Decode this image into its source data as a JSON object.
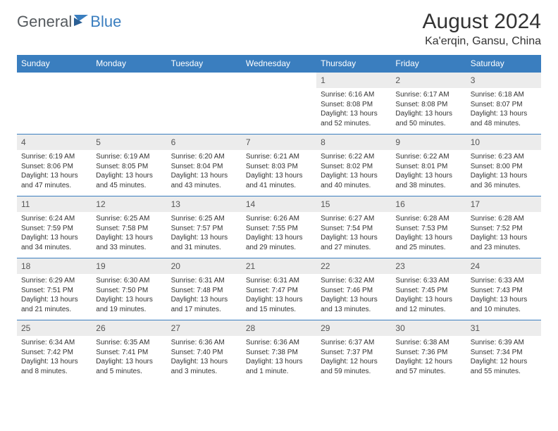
{
  "brand": {
    "part1": "General",
    "part2": "Blue"
  },
  "title": "August 2024",
  "location": "Ka'erqin, Gansu, China",
  "colors": {
    "accent": "#3a7ebf",
    "headerRow": "#ececec",
    "text": "#333333"
  },
  "weekdays": [
    "Sunday",
    "Monday",
    "Tuesday",
    "Wednesday",
    "Thursday",
    "Friday",
    "Saturday"
  ],
  "startBlanks": 4,
  "days": [
    {
      "n": "1",
      "sr": "6:16 AM",
      "ss": "8:08 PM",
      "dl": "13 hours and 52 minutes."
    },
    {
      "n": "2",
      "sr": "6:17 AM",
      "ss": "8:08 PM",
      "dl": "13 hours and 50 minutes."
    },
    {
      "n": "3",
      "sr": "6:18 AM",
      "ss": "8:07 PM",
      "dl": "13 hours and 48 minutes."
    },
    {
      "n": "4",
      "sr": "6:19 AM",
      "ss": "8:06 PM",
      "dl": "13 hours and 47 minutes."
    },
    {
      "n": "5",
      "sr": "6:19 AM",
      "ss": "8:05 PM",
      "dl": "13 hours and 45 minutes."
    },
    {
      "n": "6",
      "sr": "6:20 AM",
      "ss": "8:04 PM",
      "dl": "13 hours and 43 minutes."
    },
    {
      "n": "7",
      "sr": "6:21 AM",
      "ss": "8:03 PM",
      "dl": "13 hours and 41 minutes."
    },
    {
      "n": "8",
      "sr": "6:22 AM",
      "ss": "8:02 PM",
      "dl": "13 hours and 40 minutes."
    },
    {
      "n": "9",
      "sr": "6:22 AM",
      "ss": "8:01 PM",
      "dl": "13 hours and 38 minutes."
    },
    {
      "n": "10",
      "sr": "6:23 AM",
      "ss": "8:00 PM",
      "dl": "13 hours and 36 minutes."
    },
    {
      "n": "11",
      "sr": "6:24 AM",
      "ss": "7:59 PM",
      "dl": "13 hours and 34 minutes."
    },
    {
      "n": "12",
      "sr": "6:25 AM",
      "ss": "7:58 PM",
      "dl": "13 hours and 33 minutes."
    },
    {
      "n": "13",
      "sr": "6:25 AM",
      "ss": "7:57 PM",
      "dl": "13 hours and 31 minutes."
    },
    {
      "n": "14",
      "sr": "6:26 AM",
      "ss": "7:55 PM",
      "dl": "13 hours and 29 minutes."
    },
    {
      "n": "15",
      "sr": "6:27 AM",
      "ss": "7:54 PM",
      "dl": "13 hours and 27 minutes."
    },
    {
      "n": "16",
      "sr": "6:28 AM",
      "ss": "7:53 PM",
      "dl": "13 hours and 25 minutes."
    },
    {
      "n": "17",
      "sr": "6:28 AM",
      "ss": "7:52 PM",
      "dl": "13 hours and 23 minutes."
    },
    {
      "n": "18",
      "sr": "6:29 AM",
      "ss": "7:51 PM",
      "dl": "13 hours and 21 minutes."
    },
    {
      "n": "19",
      "sr": "6:30 AM",
      "ss": "7:50 PM",
      "dl": "13 hours and 19 minutes."
    },
    {
      "n": "20",
      "sr": "6:31 AM",
      "ss": "7:48 PM",
      "dl": "13 hours and 17 minutes."
    },
    {
      "n": "21",
      "sr": "6:31 AM",
      "ss": "7:47 PM",
      "dl": "13 hours and 15 minutes."
    },
    {
      "n": "22",
      "sr": "6:32 AM",
      "ss": "7:46 PM",
      "dl": "13 hours and 13 minutes."
    },
    {
      "n": "23",
      "sr": "6:33 AM",
      "ss": "7:45 PM",
      "dl": "13 hours and 12 minutes."
    },
    {
      "n": "24",
      "sr": "6:33 AM",
      "ss": "7:43 PM",
      "dl": "13 hours and 10 minutes."
    },
    {
      "n": "25",
      "sr": "6:34 AM",
      "ss": "7:42 PM",
      "dl": "13 hours and 8 minutes."
    },
    {
      "n": "26",
      "sr": "6:35 AM",
      "ss": "7:41 PM",
      "dl": "13 hours and 5 minutes."
    },
    {
      "n": "27",
      "sr": "6:36 AM",
      "ss": "7:40 PM",
      "dl": "13 hours and 3 minutes."
    },
    {
      "n": "28",
      "sr": "6:36 AM",
      "ss": "7:38 PM",
      "dl": "13 hours and 1 minute."
    },
    {
      "n": "29",
      "sr": "6:37 AM",
      "ss": "7:37 PM",
      "dl": "12 hours and 59 minutes."
    },
    {
      "n": "30",
      "sr": "6:38 AM",
      "ss": "7:36 PM",
      "dl": "12 hours and 57 minutes."
    },
    {
      "n": "31",
      "sr": "6:39 AM",
      "ss": "7:34 PM",
      "dl": "12 hours and 55 minutes."
    }
  ],
  "labels": {
    "sunrise": "Sunrise:",
    "sunset": "Sunset:",
    "daylight": "Daylight:"
  }
}
